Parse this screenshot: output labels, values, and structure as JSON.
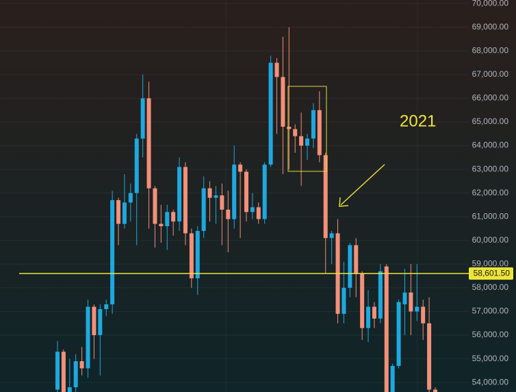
{
  "chart_data": {
    "type": "candlestick",
    "annotation": "2021",
    "open": [
      53700,
      55300,
      53600,
      53800,
      54900,
      54600,
      57200,
      56000,
      57100,
      57300,
      61700,
      60700,
      61600,
      62000,
      64300,
      66000,
      62200,
      60700,
      60600,
      61200,
      60800,
      63100,
      60300,
      58400,
      60400,
      62200,
      61800,
      61900,
      61300,
      60900,
      63200,
      62900,
      61200,
      61400,
      60900,
      63200,
      67500,
      66900,
      64800,
      64700,
      64400,
      64000,
      64300,
      65500,
      63600,
      60100,
      60300,
      56900,
      58000,
      59800,
      58600,
      56300,
      57200,
      56700,
      58900,
      53600,
      54700,
      57300,
      57800,
      57000,
      57200,
      56500,
      53700
    ],
    "high": [
      55750,
      55400,
      55000,
      55200,
      55500,
      57500,
      57300,
      57300,
      57500,
      62100,
      61800,
      62800,
      62400,
      64500,
      67000,
      66700,
      62300,
      61500,
      61500,
      61300,
      63500,
      63300,
      60500,
      60600,
      62700,
      62500,
      62300,
      62400,
      62100,
      64000,
      63300,
      63000,
      62000,
      61600,
      63300,
      67800,
      67700,
      68600,
      69000,
      64900,
      65400,
      64500,
      65800,
      66300,
      63700,
      60400,
      60900,
      59100,
      59900,
      60100,
      58700,
      57900,
      57400,
      59000,
      59000,
      54800,
      57500,
      58800,
      59000,
      59000,
      57500,
      57600,
      53800
    ],
    "low": [
      53500,
      53500,
      53500,
      53600,
      54300,
      54200,
      55000,
      54300,
      56800,
      56900,
      59800,
      60500,
      60800,
      59800,
      63500,
      60500,
      59700,
      59900,
      59600,
      60200,
      60400,
      59800,
      58000,
      57700,
      60100,
      60800,
      60700,
      59800,
      59500,
      60500,
      60100,
      60800,
      60900,
      60700,
      60700,
      63100,
      64500,
      62800,
      63000,
      63700,
      62300,
      63400,
      63900,
      63300,
      58600,
      59000,
      56500,
      56500,
      57600,
      57600,
      55800,
      55700,
      56300,
      56500,
      53500,
      53500,
      54600,
      56000,
      56000,
      56600,
      55800,
      53500,
      53500
    ],
    "close": [
      55300,
      53600,
      53800,
      54900,
      54600,
      57200,
      56000,
      57100,
      57300,
      61700,
      60700,
      61600,
      62000,
      64300,
      66000,
      62200,
      60700,
      60600,
      61200,
      60800,
      63100,
      60300,
      58400,
      60400,
      62200,
      61800,
      61900,
      61300,
      60900,
      63200,
      62900,
      61200,
      61400,
      60900,
      63200,
      67500,
      66900,
      64800,
      64700,
      64400,
      64000,
      64300,
      65500,
      63600,
      60100,
      60300,
      56900,
      58000,
      59800,
      58600,
      56300,
      57200,
      56700,
      58700,
      53600,
      54700,
      57400,
      57800,
      57000,
      57200,
      56500,
      53700,
      53600
    ],
    "up_color": "#1fa8df",
    "down_color": "#f39079",
    "price_line": {
      "value": 58601.5,
      "label": "58,601.50",
      "color": "#ece43a"
    },
    "ylim": [
      53600,
      70150
    ],
    "yticks": [
      {
        "value": 70000,
        "label": "70,000.00"
      },
      {
        "value": 69000,
        "label": "69,000.00"
      },
      {
        "value": 68000,
        "label": "68,000.00"
      },
      {
        "value": 67000,
        "label": "67,000.00"
      },
      {
        "value": 66000,
        "label": "66,000.00"
      },
      {
        "value": 65000,
        "label": "65,000.00"
      },
      {
        "value": 64000,
        "label": "64,000.00"
      },
      {
        "value": 63000,
        "label": "63,000.00"
      },
      {
        "value": 62000,
        "label": "62,000.00"
      },
      {
        "value": 61000,
        "label": "61,000.00"
      },
      {
        "value": 60000,
        "label": "60,000.00"
      },
      {
        "value": 59000,
        "label": "59,000.00"
      },
      {
        "value": 58000,
        "label": "58,000.00"
      },
      {
        "value": 57000,
        "label": "57,000.00"
      },
      {
        "value": 56000,
        "label": "56,000.00"
      },
      {
        "value": 55000,
        "label": "55,000.00"
      },
      {
        "value": 54000,
        "label": "54,000.00"
      }
    ],
    "grid": true
  }
}
